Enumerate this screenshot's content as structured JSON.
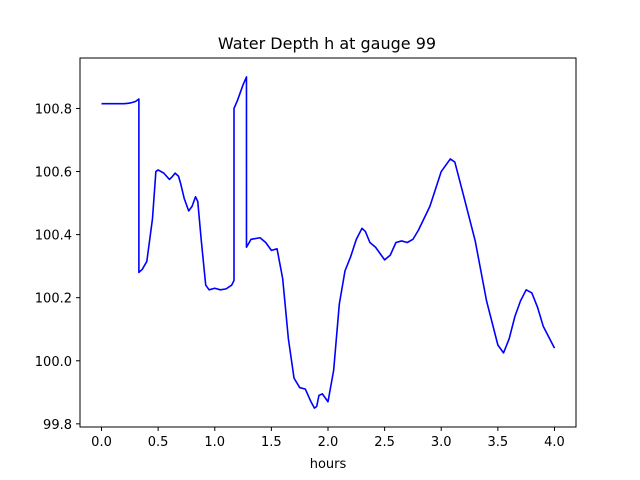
{
  "chart_data": {
    "type": "line",
    "title": "Water Depth h at gauge 99",
    "xlabel": "hours",
    "ylabel": "",
    "xlim": [
      -0.19,
      4.19
    ],
    "ylim": [
      99.79,
      100.96
    ],
    "xticks": [
      0.0,
      0.5,
      1.0,
      1.5,
      2.0,
      2.5,
      3.0,
      3.5,
      4.0
    ],
    "xtick_labels": [
      "0.0",
      "0.5",
      "1.0",
      "1.5",
      "2.0",
      "2.5",
      "3.0",
      "3.5",
      "4.0"
    ],
    "yticks": [
      99.8,
      100.0,
      100.2,
      100.4,
      100.6,
      100.8
    ],
    "ytick_labels": [
      "99.8",
      "100.0",
      "100.2",
      "100.4",
      "100.6",
      "100.8"
    ],
    "grid": false,
    "series": [
      {
        "color": "#0000ff",
        "x": [
          0.0,
          0.1,
          0.2,
          0.25,
          0.3,
          0.33,
          0.33,
          0.36,
          0.4,
          0.45,
          0.48,
          0.5,
          0.55,
          0.6,
          0.62,
          0.65,
          0.68,
          0.7,
          0.73,
          0.77,
          0.8,
          0.83,
          0.85,
          0.88,
          0.92,
          0.95,
          1.0,
          1.05,
          1.1,
          1.15,
          1.17,
          1.17,
          1.2,
          1.25,
          1.28,
          1.28,
          1.32,
          1.4,
          1.45,
          1.5,
          1.55,
          1.6,
          1.65,
          1.7,
          1.75,
          1.8,
          1.85,
          1.88,
          1.9,
          1.92,
          1.95,
          2.0,
          2.05,
          2.1,
          2.15,
          2.2,
          2.25,
          2.3,
          2.33,
          2.37,
          2.42,
          2.47,
          2.5,
          2.55,
          2.6,
          2.65,
          2.7,
          2.75,
          2.8,
          2.9,
          3.0,
          3.08,
          3.12,
          3.2,
          3.3,
          3.4,
          3.5,
          3.55,
          3.6,
          3.65,
          3.7,
          3.75,
          3.8,
          3.85,
          3.9,
          4.0
        ],
        "y": [
          100.815,
          100.815,
          100.815,
          100.817,
          100.822,
          100.83,
          100.28,
          100.29,
          100.315,
          100.45,
          100.6,
          100.605,
          100.595,
          100.575,
          100.582,
          100.595,
          100.585,
          100.56,
          100.515,
          100.475,
          100.49,
          100.52,
          100.505,
          100.385,
          100.24,
          100.225,
          100.23,
          100.225,
          100.228,
          100.24,
          100.255,
          100.8,
          100.825,
          100.875,
          100.9,
          100.36,
          100.385,
          100.39,
          100.375,
          100.35,
          100.355,
          100.26,
          100.07,
          99.945,
          99.915,
          99.91,
          99.87,
          99.85,
          99.855,
          99.89,
          99.895,
          99.87,
          99.97,
          100.18,
          100.285,
          100.33,
          100.385,
          100.42,
          100.41,
          100.375,
          100.36,
          100.335,
          100.32,
          100.335,
          100.375,
          100.38,
          100.375,
          100.385,
          100.415,
          100.49,
          100.6,
          100.64,
          100.63,
          100.52,
          100.38,
          100.19,
          100.05,
          100.025,
          100.07,
          100.14,
          100.19,
          100.225,
          100.215,
          100.17,
          100.11,
          100.04
        ]
      }
    ]
  }
}
